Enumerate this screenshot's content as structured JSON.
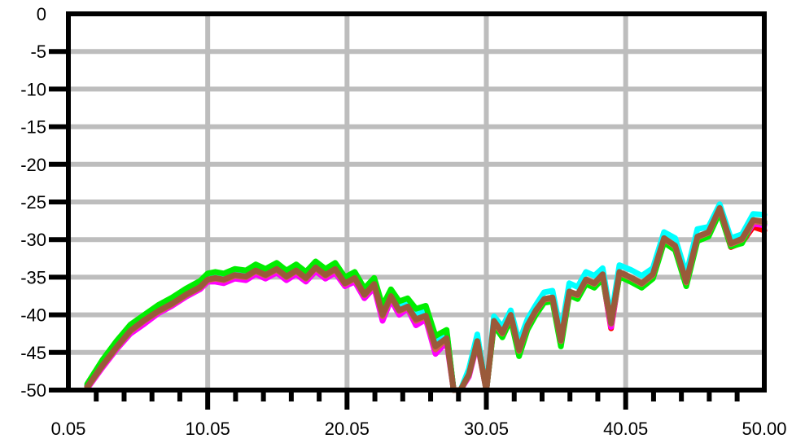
{
  "chart_data": {
    "type": "line",
    "title": "",
    "xlabel": "",
    "ylabel": "",
    "xlim": [
      0.05,
      50.0
    ],
    "ylim": [
      -50,
      0
    ],
    "grid": true,
    "x_tick_labels": [
      "0.05",
      "10.05",
      "20.05",
      "30.05",
      "40.05",
      "50.00"
    ],
    "y_tick_labels": [
      "0",
      "-5",
      "-10",
      "-15",
      "-20",
      "-25",
      "-30",
      "-35",
      "-40",
      "-45",
      "-50"
    ],
    "x": [
      1.4,
      2.5,
      3.5,
      4.5,
      5.5,
      6.5,
      7.5,
      8.5,
      9.5,
      10.05,
      10.6,
      11.2,
      12.0,
      12.8,
      13.5,
      14.2,
      15.0,
      15.7,
      16.4,
      17.1,
      17.8,
      18.5,
      19.2,
      19.9,
      20.6,
      21.3,
      22.0,
      22.6,
      23.2,
      23.8,
      24.4,
      25.0,
      25.7,
      26.4,
      27.2,
      27.7,
      28.2,
      28.8,
      29.4,
      30.05,
      30.6,
      31.2,
      31.8,
      32.4,
      33.0,
      33.6,
      34.2,
      34.8,
      35.4,
      36.0,
      36.6,
      37.2,
      37.8,
      38.4,
      39.0,
      39.6,
      40.4,
      41.2,
      42.0,
      42.8,
      43.6,
      44.4,
      45.2,
      46.0,
      46.8,
      47.6,
      48.4,
      49.2,
      50.0
    ],
    "series": [
      {
        "color": "#0000cc",
        "values": [
          -49.5,
          -46.5,
          -44.0,
          -41.8,
          -40.5,
          -39.2,
          -38.2,
          -37.0,
          -36.0,
          -35.0,
          -34.8,
          -35.0,
          -34.4,
          -34.6,
          -33.8,
          -34.4,
          -33.6,
          -34.6,
          -33.8,
          -34.8,
          -33.4,
          -34.4,
          -33.6,
          -35.5,
          -34.8,
          -37.0,
          -35.6,
          -39.5,
          -37.2,
          -38.8,
          -38.4,
          -40.0,
          -39.5,
          -43.5,
          -42.4,
          -50.0,
          -50.0,
          -47.8,
          -43.4,
          -50.0,
          -41.0,
          -42.5,
          -40.2,
          -44.8,
          -41.5,
          -39.5,
          -38.0,
          -37.8,
          -43.6,
          -37.0,
          -37.5,
          -35.5,
          -36.0,
          -34.8,
          -41.5,
          -34.5,
          -35.2,
          -36.0,
          -34.8,
          -30.0,
          -31.0,
          -35.8,
          -29.8,
          -29.2,
          -26.0,
          -30.8,
          -30.2,
          -27.8,
          -28.0
        ]
      },
      {
        "color": "#ff0000",
        "values": [
          -49.6,
          -46.6,
          -44.2,
          -42.0,
          -40.6,
          -39.4,
          -38.4,
          -37.2,
          -36.2,
          -35.2,
          -35.0,
          -35.2,
          -34.6,
          -34.8,
          -34.0,
          -34.6,
          -33.8,
          -34.8,
          -34.0,
          -35.0,
          -33.6,
          -34.6,
          -33.8,
          -35.7,
          -35.0,
          -37.2,
          -35.8,
          -39.7,
          -37.4,
          -39.0,
          -38.6,
          -40.2,
          -39.7,
          -43.7,
          -42.6,
          -50.0,
          -50.0,
          -48.0,
          -43.6,
          -50.0,
          -41.2,
          -42.7,
          -40.4,
          -45.0,
          -41.7,
          -39.7,
          -38.2,
          -38.0,
          -43.8,
          -37.2,
          -37.7,
          -35.7,
          -36.2,
          -35.0,
          -41.8,
          -34.7,
          -35.4,
          -36.2,
          -35.0,
          -30.2,
          -31.2,
          -36.0,
          -30.0,
          -29.4,
          -26.2,
          -31.0,
          -30.4,
          -28.3,
          -28.8
        ]
      },
      {
        "color": "#006600",
        "values": [
          -49.4,
          -46.4,
          -43.9,
          -41.7,
          -40.4,
          -39.1,
          -38.1,
          -36.9,
          -35.9,
          -34.9,
          -34.7,
          -34.9,
          -34.3,
          -34.5,
          -33.7,
          -34.3,
          -33.5,
          -34.5,
          -33.7,
          -34.7,
          -33.3,
          -34.3,
          -33.5,
          -35.4,
          -34.7,
          -36.9,
          -35.5,
          -39.4,
          -37.1,
          -38.7,
          -38.3,
          -39.9,
          -39.4,
          -43.4,
          -42.3,
          -50.0,
          -50.0,
          -47.7,
          -43.3,
          -50.0,
          -40.9,
          -42.4,
          -40.1,
          -44.7,
          -41.4,
          -39.4,
          -37.9,
          -37.7,
          -43.5,
          -36.9,
          -37.4,
          -35.4,
          -35.9,
          -34.7,
          -41.4,
          -34.4,
          -35.1,
          -35.9,
          -34.7,
          -29.9,
          -30.9,
          -35.7,
          -29.7,
          -29.1,
          -25.9,
          -30.7,
          -30.1,
          -27.7,
          -27.9
        ]
      },
      {
        "color": "#ff00ff",
        "values": [
          -49.8,
          -47.0,
          -44.6,
          -42.5,
          -41.2,
          -39.8,
          -38.8,
          -37.6,
          -36.6,
          -35.6,
          -35.6,
          -35.8,
          -35.2,
          -35.4,
          -34.6,
          -35.2,
          -34.4,
          -35.4,
          -34.6,
          -35.6,
          -34.2,
          -35.2,
          -34.4,
          -36.2,
          -35.6,
          -37.8,
          -36.4,
          -40.8,
          -38.0,
          -40.0,
          -39.2,
          -41.4,
          -40.6,
          -45.2,
          -43.6,
          -50.0,
          -50.0,
          -48.2,
          -43.8,
          -50.0,
          -41.0,
          -42.6,
          -40.2,
          -44.9,
          -41.6,
          -39.6,
          -38.1,
          -37.9,
          -43.7,
          -37.1,
          -37.6,
          -35.6,
          -36.1,
          -34.9,
          -41.6,
          -34.6,
          -35.3,
          -36.1,
          -34.9,
          -30.1,
          -31.1,
          -35.9,
          -29.9,
          -29.3,
          -26.1,
          -30.9,
          -30.3,
          -27.9,
          -28.1
        ]
      },
      {
        "color": "#00ffff",
        "values": [
          -49.3,
          -46.3,
          -43.8,
          -41.6,
          -40.3,
          -39.0,
          -38.0,
          -36.8,
          -35.8,
          -34.8,
          -34.6,
          -34.8,
          -34.2,
          -34.4,
          -33.6,
          -34.2,
          -33.4,
          -34.4,
          -33.6,
          -34.6,
          -33.2,
          -34.2,
          -33.4,
          -35.3,
          -34.6,
          -36.8,
          -35.4,
          -39.3,
          -37.0,
          -38.6,
          -38.2,
          -39.8,
          -39.3,
          -43.3,
          -42.2,
          -50.0,
          -50.0,
          -47.2,
          -42.6,
          -50.0,
          -40.2,
          -41.6,
          -39.4,
          -43.6,
          -40.6,
          -38.7,
          -37.0,
          -36.8,
          -42.4,
          -35.8,
          -36.3,
          -34.3,
          -34.8,
          -33.8,
          -40.4,
          -33.4,
          -34.0,
          -34.8,
          -33.8,
          -29.0,
          -29.8,
          -34.6,
          -28.6,
          -28.3,
          -25.3,
          -29.8,
          -29.3,
          -26.6,
          -26.7
        ]
      },
      {
        "color": "#00ee00",
        "values": [
          -49.2,
          -46.0,
          -43.5,
          -41.3,
          -40.0,
          -38.7,
          -37.7,
          -36.5,
          -35.5,
          -34.5,
          -34.3,
          -34.5,
          -33.9,
          -34.1,
          -33.3,
          -33.9,
          -33.1,
          -34.1,
          -33.3,
          -34.3,
          -32.9,
          -33.9,
          -33.1,
          -35.0,
          -34.3,
          -36.5,
          -35.1,
          -38.8,
          -36.6,
          -38.2,
          -37.8,
          -39.2,
          -38.8,
          -42.8,
          -42.0,
          -50.0,
          -50.0,
          -47.9,
          -43.5,
          -50.0,
          -41.4,
          -43.0,
          -40.6,
          -45.5,
          -42.0,
          -40.0,
          -38.4,
          -38.2,
          -44.2,
          -37.4,
          -37.9,
          -35.9,
          -36.4,
          -35.2,
          -41.0,
          -34.9,
          -35.6,
          -36.4,
          -35.2,
          -30.4,
          -31.4,
          -36.2,
          -30.2,
          -29.6,
          -26.4,
          -30.9,
          -30.5,
          -27.5,
          -27.8
        ]
      },
      {
        "color": "#d4624c",
        "values": [
          -49.7,
          -46.8,
          -44.4,
          -42.2,
          -40.8,
          -39.6,
          -38.6,
          -37.4,
          -36.4,
          -35.4,
          -35.2,
          -35.4,
          -34.8,
          -35.0,
          -34.2,
          -34.8,
          -34.0,
          -35.0,
          -34.2,
          -35.2,
          -33.8,
          -34.8,
          -34.0,
          -35.9,
          -35.2,
          -37.4,
          -36.0,
          -40.2,
          -37.6,
          -39.5,
          -39.0,
          -40.8,
          -40.2,
          -44.6,
          -43.2,
          -50.0,
          -50.0,
          -48.0,
          -43.6,
          -50.0,
          -40.9,
          -42.5,
          -40.1,
          -44.8,
          -41.5,
          -39.5,
          -38.0,
          -37.8,
          -43.5,
          -37.0,
          -37.4,
          -35.4,
          -35.9,
          -34.7,
          -41.2,
          -34.4,
          -35.1,
          -35.9,
          -34.7,
          -29.9,
          -30.9,
          -35.7,
          -29.7,
          -29.1,
          -25.9,
          -30.6,
          -30.0,
          -27.6,
          -27.7
        ]
      },
      {
        "color": "#9a5a3a",
        "values": [
          -49.6,
          -46.7,
          -44.3,
          -42.1,
          -40.7,
          -39.5,
          -38.5,
          -37.3,
          -36.3,
          -35.3,
          -35.1,
          -35.3,
          -34.7,
          -34.9,
          -34.1,
          -34.7,
          -33.9,
          -34.9,
          -34.1,
          -35.1,
          -33.7,
          -34.7,
          -33.9,
          -35.8,
          -35.1,
          -37.3,
          -35.9,
          -40.0,
          -37.5,
          -39.4,
          -38.9,
          -40.6,
          -40.1,
          -44.2,
          -43.1,
          -50.0,
          -50.0,
          -47.9,
          -43.5,
          -50.0,
          -40.8,
          -42.4,
          -40.0,
          -44.7,
          -41.4,
          -39.4,
          -37.9,
          -37.7,
          -43.4,
          -36.9,
          -37.3,
          -35.3,
          -35.8,
          -34.6,
          -41.1,
          -34.3,
          -35.0,
          -35.8,
          -34.6,
          -29.8,
          -30.8,
          -35.6,
          -29.6,
          -29.0,
          -25.8,
          -30.5,
          -29.9,
          -27.4,
          -27.6
        ]
      }
    ]
  }
}
